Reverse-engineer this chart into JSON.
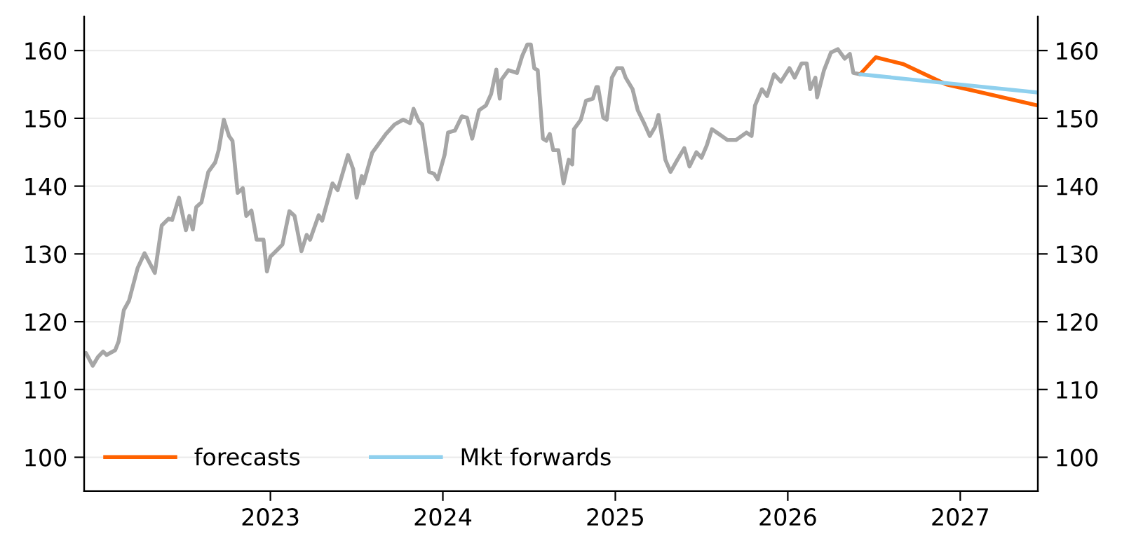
{
  "chart_data": {
    "type": "line",
    "xlim": [
      2021.92,
      2027.45
    ],
    "xticks": [
      2023,
      2024,
      2025,
      2026,
      2027
    ],
    "ylim": [
      95,
      165
    ],
    "yticks": [
      100,
      110,
      120,
      130,
      140,
      150,
      160
    ],
    "y2lim": [
      95,
      165
    ],
    "y2ticks": [
      100,
      110,
      120,
      130,
      140,
      150,
      160
    ],
    "grid": "y",
    "legend": "bottom left",
    "marker": "none",
    "line_style": "solid",
    "series": [
      {
        "color": "#a6a6a6",
        "x": [
          2021.93,
          2021.97,
          2022.0,
          2022.03,
          2022.05,
          2022.1,
          2022.12,
          2022.15,
          2022.18,
          2022.23,
          2022.27,
          2022.33,
          2022.37,
          2022.41,
          2022.43,
          2022.47,
          2022.51,
          2022.53,
          2022.55,
          2022.57,
          2022.6,
          2022.64,
          2022.68,
          2022.7,
          2022.73,
          2022.76,
          2022.78,
          2022.81,
          2022.84,
          2022.86,
          2022.89,
          2022.92,
          2022.96,
          2022.98,
          2023.0,
          2023.04,
          2023.07,
          2023.11,
          2023.14,
          2023.18,
          2023.21,
          2023.23,
          2023.28,
          2023.3,
          2023.36,
          2023.39,
          2023.45,
          2023.48,
          2023.5,
          2023.53,
          2023.54,
          2023.59,
          2023.63,
          2023.67,
          2023.72,
          2023.77,
          2023.81,
          2023.83,
          2023.86,
          2023.88,
          2023.91,
          2023.92,
          2023.95,
          2023.97,
          2024.01,
          2024.03,
          2024.07,
          2024.11,
          2024.14,
          2024.17,
          2024.21,
          2024.25,
          2024.28,
          2024.31,
          2024.33,
          2024.34,
          2024.38,
          2024.43,
          2024.46,
          2024.49,
          2024.51,
          2024.53,
          2024.55,
          2024.58,
          2024.6,
          2024.62,
          2024.64,
          2024.67,
          2024.7,
          2024.73,
          2024.75,
          2024.76,
          2024.8,
          2024.83,
          2024.87,
          2024.89,
          2024.9,
          2024.93,
          2024.95,
          2024.98,
          2025.01,
          2025.04,
          2025.06,
          2025.1,
          2025.13,
          2025.17,
          2025.2,
          2025.23,
          2025.25,
          2025.27,
          2025.29,
          2025.32,
          2025.36,
          2025.4,
          2025.43,
          2025.47,
          2025.5,
          2025.53,
          2025.56,
          2025.6,
          2025.65,
          2025.7,
          2025.76,
          2025.79,
          2025.81,
          2025.85,
          2025.88,
          2025.92,
          2025.96,
          2026.01,
          2026.04,
          2026.08,
          2026.11,
          2026.13,
          2026.16,
          2026.17,
          2026.21,
          2026.25,
          2026.29,
          2026.33,
          2026.36,
          2026.38,
          2026.42
        ],
        "values": [
          115.4,
          113.5,
          114.8,
          115.6,
          115.1,
          115.8,
          117.1,
          121.7,
          123.1,
          127.9,
          130.1,
          127.2,
          134.2,
          135.2,
          135.0,
          138.3,
          133.5,
          135.6,
          133.6,
          136.9,
          137.6,
          142.1,
          143.5,
          145.3,
          149.8,
          147.4,
          146.7,
          139.0,
          139.7,
          135.6,
          136.4,
          132.1,
          132.1,
          127.4,
          129.6,
          130.6,
          131.4,
          136.3,
          135.6,
          130.4,
          132.8,
          132.1,
          135.7,
          134.9,
          140.4,
          139.4,
          144.6,
          142.5,
          138.3,
          141.5,
          140.4,
          144.9,
          146.3,
          147.7,
          149.1,
          149.8,
          149.3,
          151.4,
          149.6,
          149.1,
          143.9,
          142.1,
          141.8,
          141.0,
          144.6,
          147.9,
          148.2,
          150.3,
          150.1,
          147.0,
          151.2,
          151.9,
          153.6,
          157.2,
          152.9,
          155.7,
          157.1,
          156.7,
          159.2,
          160.9,
          160.9,
          157.4,
          157.1,
          147.0,
          146.7,
          147.7,
          145.3,
          145.3,
          140.4,
          143.9,
          143.2,
          148.4,
          149.8,
          152.6,
          152.9,
          154.6,
          154.6,
          150.1,
          149.8,
          156.0,
          157.4,
          157.4,
          156.0,
          154.3,
          151.2,
          149.1,
          147.4,
          148.7,
          150.5,
          147.4,
          143.9,
          142.1,
          143.9,
          145.6,
          142.9,
          145.0,
          144.2,
          146.0,
          148.4,
          147.7,
          146.8,
          146.8,
          147.9,
          147.4,
          151.9,
          154.3,
          153.3,
          156.5,
          155.4,
          157.4,
          156.0,
          158.1,
          158.1,
          154.3,
          156.0,
          153.1,
          157.1,
          159.7,
          160.2,
          158.8,
          159.5,
          156.7,
          156.5
        ]
      },
      {
        "name": "forecasts",
        "color": "#ff6200",
        "x": [
          2026.42,
          2026.51,
          2026.67,
          2026.92,
          2027.45
        ],
        "values": [
          156.5,
          159,
          158,
          155,
          151.9
        ]
      },
      {
        "name": "Mkt forwards",
        "color": "#8fd0ee",
        "x": [
          2026.42,
          2027.45
        ],
        "values": [
          156.5,
          153.8
        ]
      }
    ]
  }
}
